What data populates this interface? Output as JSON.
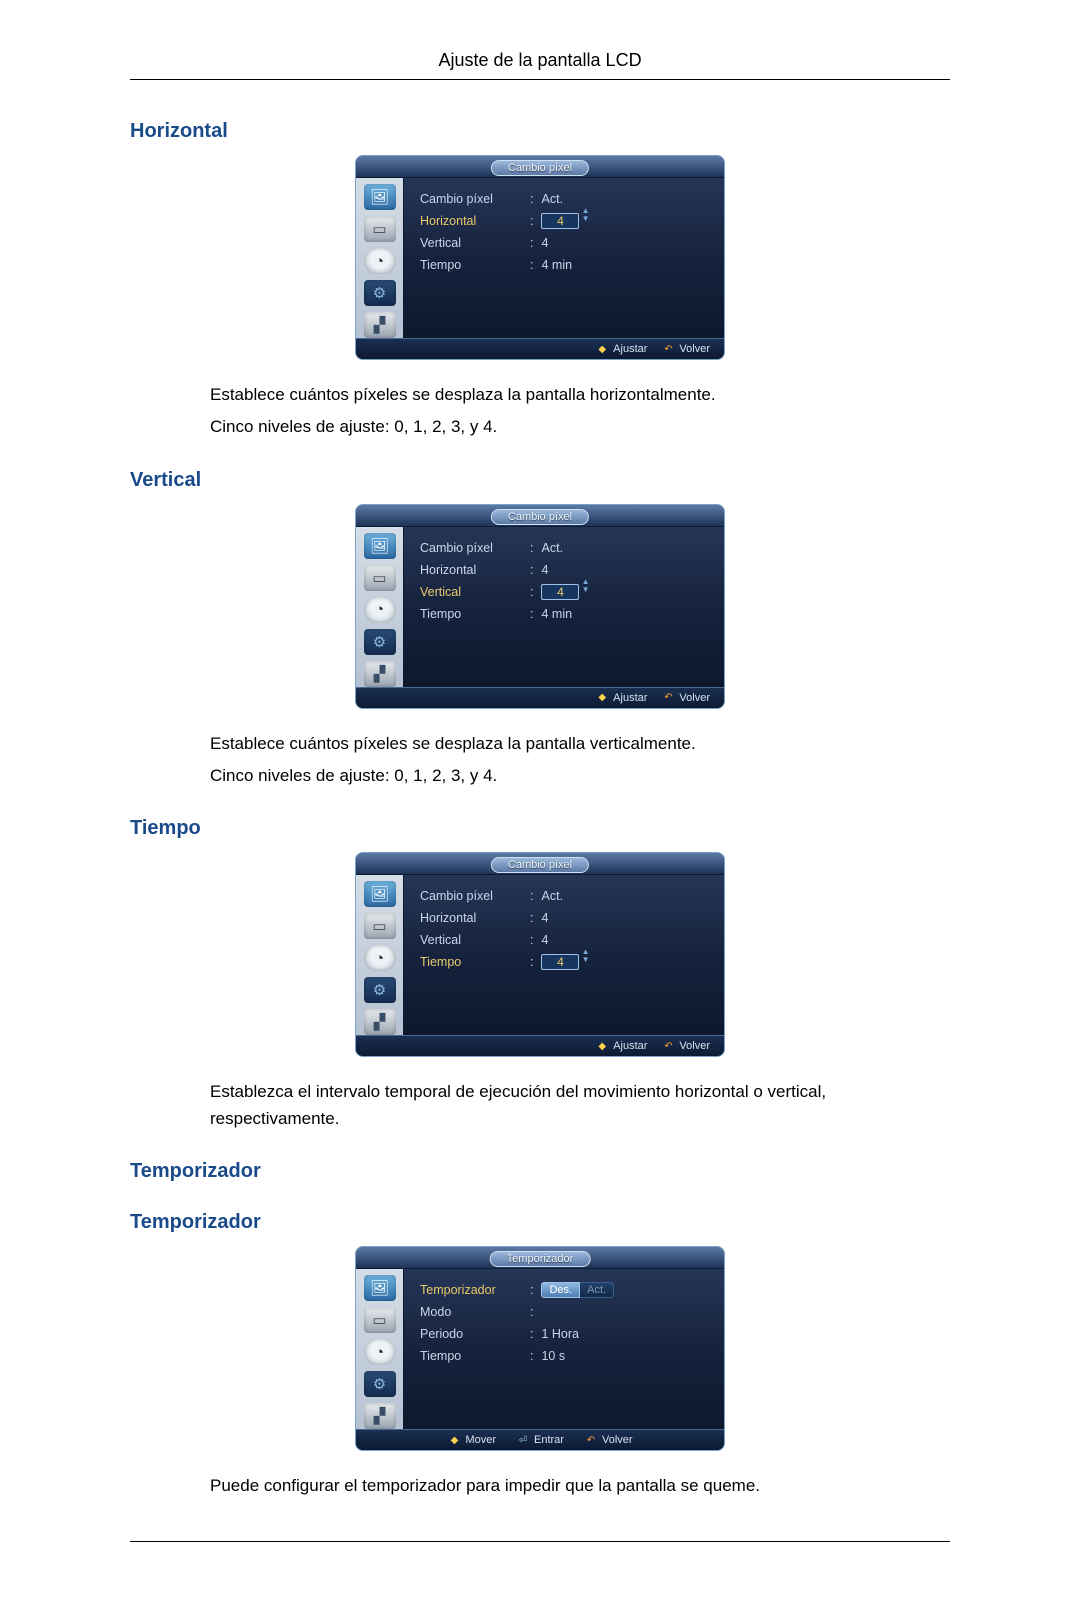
{
  "page_header": "Ajuste de la pantalla LCD",
  "sections": {
    "horizontal": {
      "heading": "Horizontal",
      "desc1": "Establece cuántos píxeles se desplaza la pantalla horizontalmente.",
      "desc2": "Cinco niveles de ajuste: 0, 1, 2, 3, y 4."
    },
    "vertical": {
      "heading": "Vertical",
      "desc1": "Establece cuántos píxeles se desplaza la pantalla verticalmente.",
      "desc2": "Cinco niveles de ajuste: 0, 1, 2, 3, y 4."
    },
    "tiempo": {
      "heading": "Tiempo",
      "desc1": "Establezca el intervalo temporal de ejecución del movimiento horizontal o vertical, respectivamente."
    },
    "temporizador1": {
      "heading": "Temporizador"
    },
    "temporizador2": {
      "heading": "Temporizador",
      "desc1": "Puede configurar el temporizador para impedir que la pantalla se queme."
    }
  },
  "osd": {
    "cambio_pixel": {
      "title": "Cambio píxel",
      "rows": {
        "cambio": {
          "label": "Cambio píxel",
          "value": "Act."
        },
        "horizontal": {
          "label": "Horizontal",
          "value": "4"
        },
        "vertical": {
          "label": "Vertical",
          "value": "4"
        },
        "tiempo": {
          "label": "Tiempo",
          "value": "4 min",
          "spin_value": "4"
        }
      }
    },
    "temporizador": {
      "title": "Temporizador",
      "rows": {
        "temporizador": {
          "label": "Temporizador"
        },
        "modo": {
          "label": "Modo"
        },
        "periodo": {
          "label": "Periodo",
          "value": "1 Hora"
        },
        "tiempo": {
          "label": "Tiempo",
          "value": "10 s"
        }
      },
      "toggle": {
        "off": "Des.",
        "on": "Act."
      }
    },
    "footer": {
      "ajustar": "Ajustar",
      "volver": "Volver",
      "mover": "Mover",
      "entrar": "Entrar"
    }
  }
}
